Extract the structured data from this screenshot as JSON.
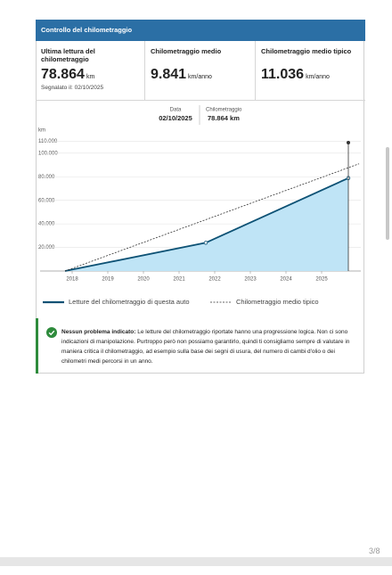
{
  "header": {
    "title": "Controllo del chilometraggio"
  },
  "stats": [
    {
      "label": "Ultima lettura del chilometraggio",
      "value": "78.864",
      "unit": "km",
      "note": "Segnalato il: 02/10/2025"
    },
    {
      "label": "Chilometraggio medio",
      "value": "9.841",
      "unit": "km/anno"
    },
    {
      "label": "Chilometraggio medio tipico",
      "value": "11.036",
      "unit": "km/anno"
    }
  ],
  "tooltip": {
    "date_label": "Data",
    "date": "02/10/2025",
    "km_label": "Chilometraggio",
    "km": "78.864 km"
  },
  "chart_data": {
    "type": "line",
    "ylabel": "km",
    "xlim": [
      2017.1,
      2026.1
    ],
    "xticks": [
      2018,
      2019,
      2020,
      2021,
      2022,
      2023,
      2024,
      2025
    ],
    "ylim": [
      0,
      115000
    ],
    "yticks": [
      {
        "value": 20000,
        "label": "20.000"
      },
      {
        "value": 40000,
        "label": "40.000"
      },
      {
        "value": 60000,
        "label": "60.000"
      },
      {
        "value": 80000,
        "label": "80.000"
      },
      {
        "value": 100000,
        "label": "100.000"
      },
      {
        "value": 110000,
        "label": "110.000"
      }
    ],
    "grid": true,
    "series": [
      {
        "name": "Letture del chilometraggio di questa auto",
        "color": "#0d5275",
        "fill": "#bfe4f6",
        "x": [
          2017.8,
          2021.75,
          2025.75
        ],
        "values": [
          0,
          24000,
          78864
        ]
      },
      {
        "name": "Chilometraggio medio tipico",
        "color": "#333333",
        "dashed": true,
        "x": [
          2017.8,
          2026.05
        ],
        "values": [
          0,
          91000
        ]
      }
    ]
  },
  "note": {
    "title": "Nessun problema indicato:",
    "text": "Le letture del chilometraggio riportate hanno una progressione logica. Non ci sono indicazioni di manipolazione. Purtroppo però non possiamo garantirlo, quindi ti consigliamo sempre di valutare in maniera critica il chilometraggio, ad esempio sulla base dei segni di usura, del numero di cambi d'olio o dei chilometri medi percorsi in un anno."
  },
  "page_number": "3/8"
}
